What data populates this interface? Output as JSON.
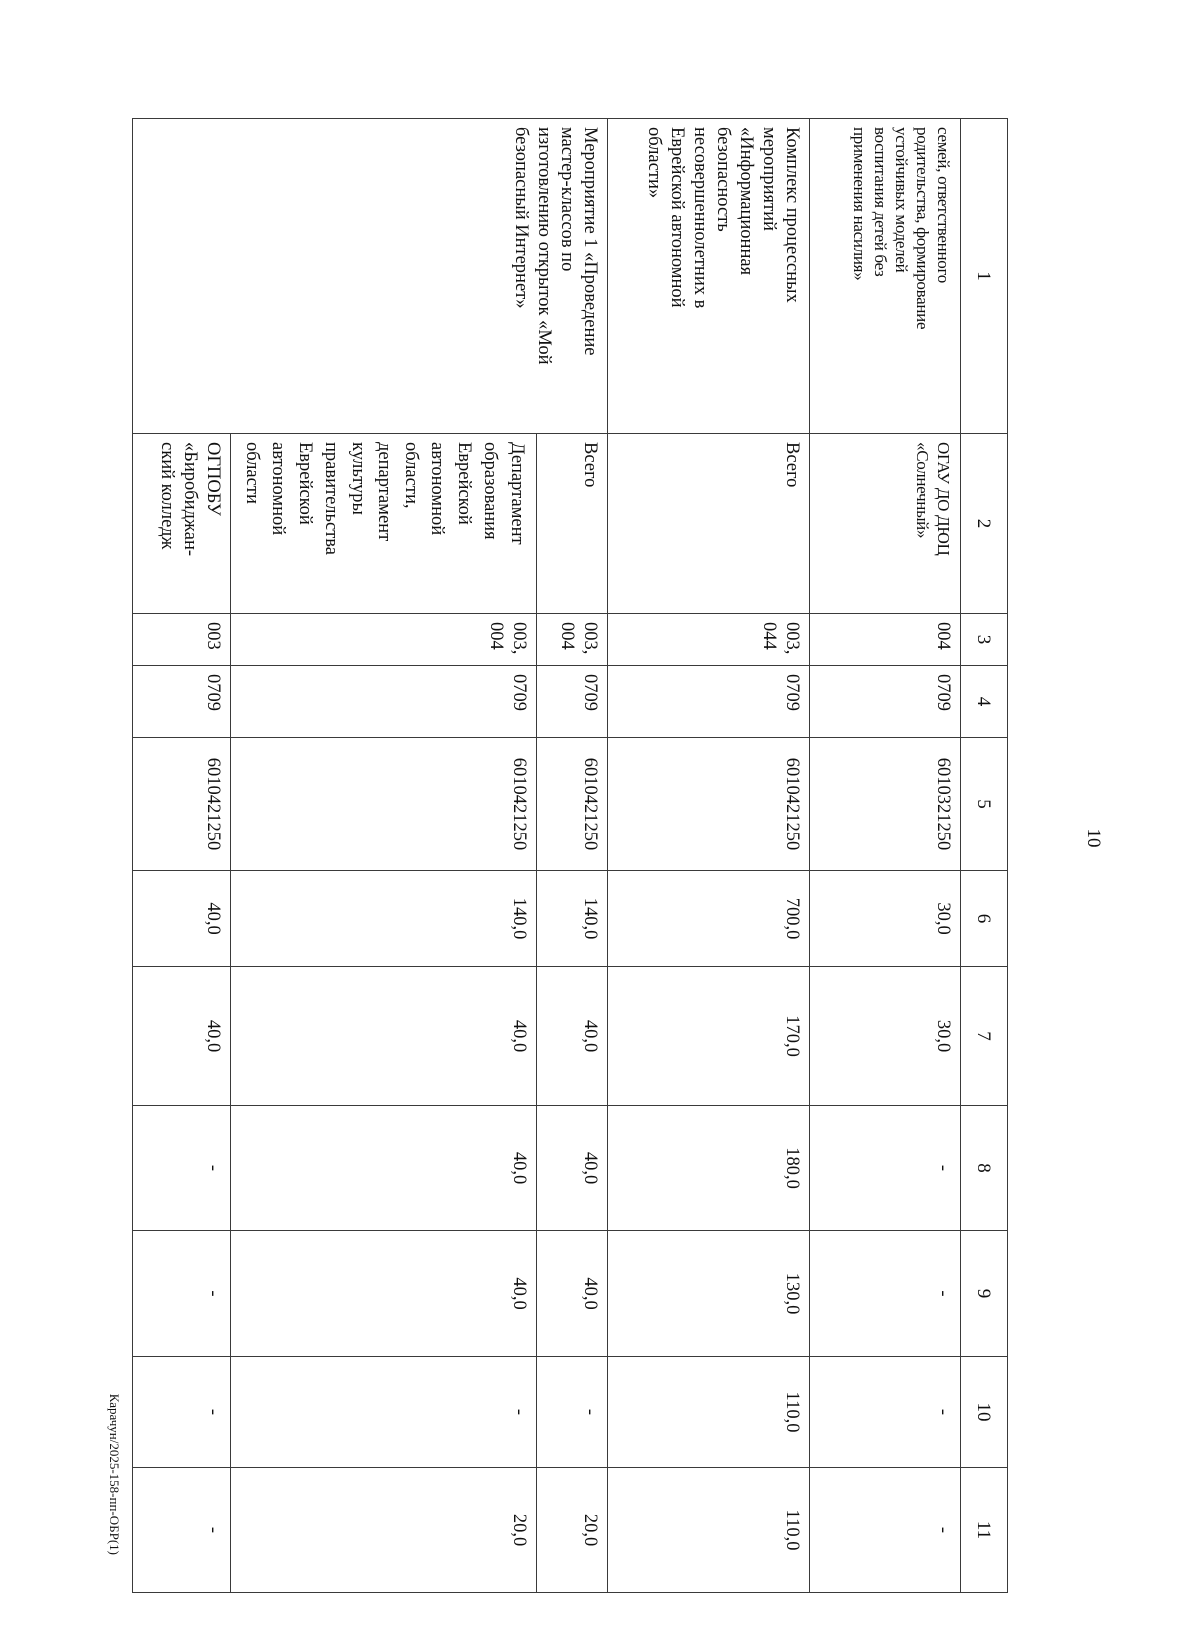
{
  "page_number": "10",
  "footer": "Карачун/2025-158-пп-ОБР(1)",
  "table": {
    "header": [
      "1",
      "2",
      "3",
      "4",
      "5",
      "6",
      "7",
      "8",
      "9",
      "10",
      "11"
    ],
    "rows": [
      {
        "c1": "семей, ответственного\nродительства, формирование\nустойчивых моделей\nвоспитания детей без\nприменения насилия»",
        "c2": "ОГАУ ДО ДЮЦ\n«Солнечный»",
        "c3": "004",
        "c4": "0709",
        "c5": "6010321250",
        "v": [
          "30,0",
          "30,0",
          "-",
          "-",
          "-",
          "-"
        ]
      },
      {
        "c1": "Комплекс процессных\nмероприятий\n«Информационная\nбезопасность\nнесовершеннолетних в\nЕврейской автономной\nобласти»",
        "c2": "Всего",
        "c3": "003,\n044",
        "c4": "0709",
        "c5": "6010421250",
        "v": [
          "700,0",
          "170,0",
          "180,0",
          "130,0",
          "110,0",
          "110,0"
        ]
      },
      {
        "c1": "Мероприятие 1 «Проведение\nмастер-классов по\nизготовлению открыток «Мой\nбезопасный Интернет»",
        "c2": "Всего",
        "c3": "003,\n004",
        "c4": "0709",
        "c5": "6010421250",
        "v": [
          "140,0",
          "40,0",
          "40,0",
          "40,0",
          "-",
          "20,0"
        ]
      },
      {
        "c2": "Департамент\nобразования\nЕврейской\nавтономной\nобласти,\nдепартамент\nкультуры\nправительства\nЕврейской\nавтономной\nобласти",
        "c3": "003,\n004",
        "c4": "0709",
        "c5": "6010421250",
        "v": [
          "140,0",
          "40,0",
          "40,0",
          "40,0",
          "-",
          "20,0"
        ]
      },
      {
        "c2": "ОГПОБУ\n«Биробиджан-\nский колледж",
        "c3": "003",
        "c4": "0709",
        "c5": "6010421250",
        "v": [
          "40,0",
          "40,0",
          "-",
          "-",
          "-",
          "-"
        ]
      }
    ]
  }
}
